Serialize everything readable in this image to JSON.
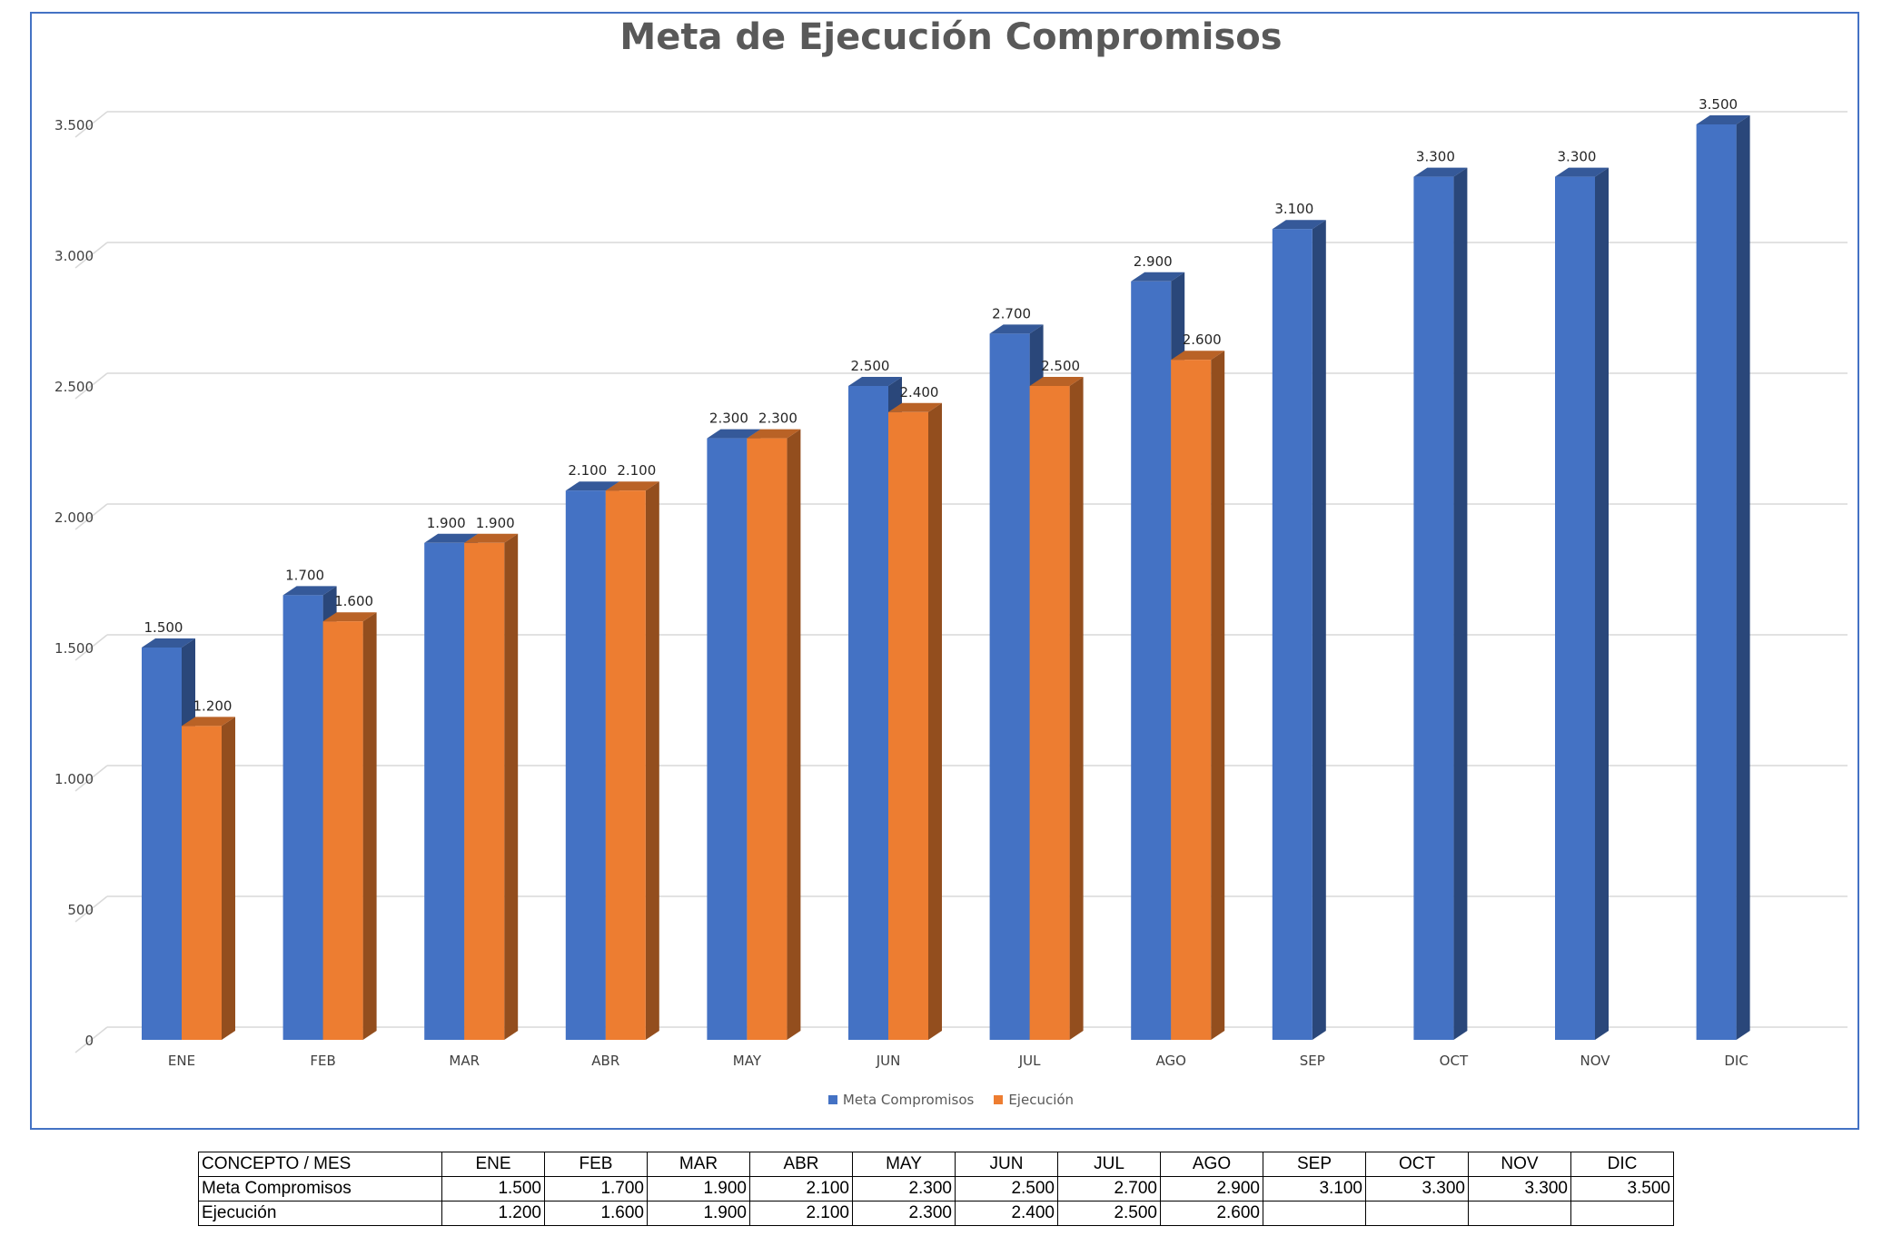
{
  "chart_data": {
    "type": "bar",
    "title": "Meta de Ejecución Compromisos",
    "categories": [
      "ENE",
      "FEB",
      "MAR",
      "ABR",
      "MAY",
      "JUN",
      "JUL",
      "AGO",
      "SEP",
      "OCT",
      "NOV",
      "DIC"
    ],
    "series": [
      {
        "name": "Meta Compromisos",
        "color": "#4472c4",
        "values": [
          1500,
          1700,
          1900,
          2100,
          2300,
          2500,
          2700,
          2900,
          3100,
          3300,
          3300,
          3500
        ],
        "labels": [
          "1.500",
          "1.700",
          "1.900",
          "2.100",
          "2.300",
          "2.500",
          "2.700",
          "2.900",
          "3.100",
          "3.300",
          "3.300",
          "3.500"
        ]
      },
      {
        "name": "Ejecución",
        "color": "#ed7d31",
        "values": [
          1200,
          1600,
          1900,
          2100,
          2300,
          2400,
          2500,
          2600,
          null,
          null,
          null,
          null
        ],
        "labels": [
          "1.200",
          "1.600",
          "1.900",
          "2.100",
          "2.300",
          "2.400",
          "2.500",
          "2.600",
          "",
          "",
          "",
          ""
        ]
      }
    ],
    "y_ticks": [
      {
        "value": 0,
        "label": "0"
      },
      {
        "value": 500,
        "label": "500"
      },
      {
        "value": 1000,
        "label": "1.000"
      },
      {
        "value": 1500,
        "label": "1.500"
      },
      {
        "value": 2000,
        "label": "2.000"
      },
      {
        "value": 2500,
        "label": "2.500"
      },
      {
        "value": 3000,
        "label": "3.000"
      },
      {
        "value": 3500,
        "label": "3.500"
      }
    ],
    "ylim": [
      0,
      3500
    ],
    "grid": true,
    "legend_position": "bottom",
    "xlabel": "",
    "ylabel": ""
  },
  "table": {
    "header": [
      "CONCEPTO / MES",
      "ENE",
      "FEB",
      "MAR",
      "ABR",
      "MAY",
      "JUN",
      "JUL",
      "AGO",
      "SEP",
      "OCT",
      "NOV",
      "DIC"
    ],
    "rows": [
      [
        "Meta Compromisos",
        "1.500",
        "1.700",
        "1.900",
        "2.100",
        "2.300",
        "2.500",
        "2.700",
        "2.900",
        "3.100",
        "3.300",
        "3.300",
        "3.500"
      ],
      [
        "Ejecución",
        "1.200",
        "1.600",
        "1.900",
        "2.100",
        "2.300",
        "2.400",
        "2.500",
        "2.600",
        "",
        "",
        "",
        ""
      ]
    ]
  }
}
